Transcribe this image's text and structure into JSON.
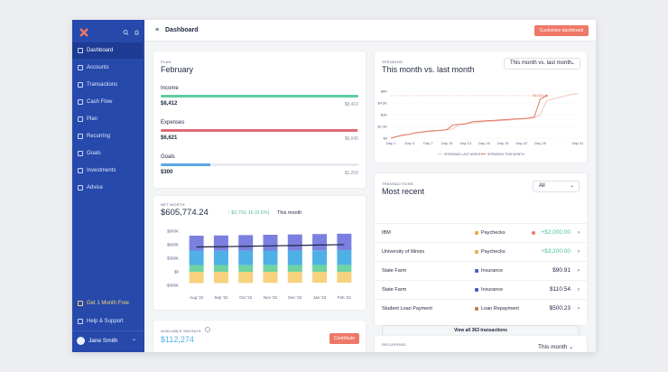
{
  "sidebar": {
    "nav": [
      "Dashboard",
      "Accounts",
      "Transactions",
      "Cash Flow",
      "Plan",
      "Recurring",
      "Goals",
      "Investments",
      "Advice"
    ],
    "promo": "Get 1 Month Free",
    "help": "Help & Support",
    "user": "Jane Smith"
  },
  "header": {
    "title": "Dashboard",
    "button": "Customize dashboard"
  },
  "plan": {
    "label": "PLAN",
    "title": "February",
    "rows": [
      {
        "name": "Income",
        "actual": 8412,
        "actual_label": "$8,412",
        "target": 8410,
        "target_label": "$8,410",
        "color": "#5fcca0"
      },
      {
        "name": "Expenses",
        "actual": 6621,
        "actual_label": "$6,621",
        "target": 6645,
        "target_label": "$6,645",
        "color": "#e0697a"
      },
      {
        "name": "Goals",
        "actual": 300,
        "actual_label": "$300",
        "target": 1200,
        "target_label": "$1,200",
        "color": "#5aa6e6"
      }
    ]
  },
  "net_worth": {
    "label": "NET WORTH",
    "value": "$605,774.24",
    "change": "↑ $2,791.16 (0.5%)",
    "period": "This month",
    "chart_data": {
      "type": "bar",
      "stacked": true,
      "categories": [
        "Aug '22",
        "Sep '22",
        "Oct '22",
        "Nov '22",
        "Dec '22",
        "Jan '22",
        "Feb '22"
      ],
      "series": [
        {
          "color": "#f6d27e",
          "values": [
            -250000,
            -250000,
            -248000,
            -246000,
            -245000,
            -244000,
            -242000
          ]
        },
        {
          "color": "#6fd4a2",
          "values": [
            150000,
            150000,
            148000,
            152000,
            150000,
            151000,
            152000
          ]
        },
        {
          "color": "#4fb0e6",
          "values": [
            320000,
            315000,
            320000,
            318000,
            322000,
            325000,
            326000
          ]
        },
        {
          "color": "#7b80e0",
          "values": [
            330000,
            340000,
            345000,
            350000,
            355000,
            360000,
            365000
          ]
        }
      ],
      "line": {
        "color": "#1f2340",
        "values": [
          550000,
          555000,
          565000,
          574000,
          582000,
          592000,
          601000
        ]
      },
      "ylim": [
        -400000,
        1000000
      ],
      "yticks": [
        {
          "value": 900000,
          "label": "$900K"
        },
        {
          "value": 600000,
          "label": "$600K"
        },
        {
          "value": 300000,
          "label": "$300K"
        },
        {
          "value": 0,
          "label": "$0"
        },
        {
          "value": -300000,
          "label": "-$300K"
        }
      ]
    }
  },
  "savings": {
    "label": "AVAILABLE SAVINGS",
    "value": "$112,274",
    "button": "Contribute"
  },
  "spending": {
    "label": "SPENDING",
    "title": "This month vs. last month",
    "dropdown": "This month vs. last month",
    "chart_data": {
      "type": "line",
      "x": [
        1,
        2,
        3,
        4,
        5,
        6,
        7,
        8,
        9,
        10,
        11,
        12,
        13,
        14,
        15,
        16,
        17,
        18,
        19,
        20,
        21,
        22,
        23,
        24,
        25,
        26,
        27,
        28,
        29,
        30,
        31
      ],
      "series": [
        {
          "name": "SPENDING LAST MONTH",
          "color": "#f2c4bc",
          "values": [
            0,
            250,
            350,
            500,
            650,
            750,
            850,
            900,
            1000,
            1050,
            1200,
            1800,
            1850,
            1900,
            2000,
            2100,
            2150,
            2200,
            2250,
            2300,
            2400,
            2450,
            2500,
            2600,
            3000,
            4800,
            5000,
            5200,
            5400,
            5600,
            5700
          ]
        },
        {
          "name": "SPENDING THIS MONTH",
          "color": "#e07a62",
          "values": [
            0,
            200,
            400,
            500,
            700,
            800,
            900,
            950,
            1000,
            1100,
            1700,
            1750,
            1800,
            2100,
            2150,
            2200,
            2250,
            2300,
            2350,
            2400,
            2450,
            2500,
            2550,
            2700,
            5000,
            5423,
            null,
            null,
            null,
            null,
            null
          ]
        }
      ],
      "annotation": "$5,423",
      "xlim": [
        1,
        31
      ],
      "xticks": [
        {
          "value": 1,
          "label": "Day 1"
        },
        {
          "value": 4,
          "label": "Day 4"
        },
        {
          "value": 7,
          "label": "Day 7"
        },
        {
          "value": 10,
          "label": "Day 10"
        },
        {
          "value": 13,
          "label": "Day 13"
        },
        {
          "value": 16,
          "label": "Day 16"
        },
        {
          "value": 19,
          "label": "Day 19"
        },
        {
          "value": 22,
          "label": "Day 22"
        },
        {
          "value": 25,
          "label": "Day 25"
        },
        {
          "value": 31,
          "label": "Day 31"
        }
      ],
      "ylim": [
        0,
        6000
      ],
      "yticks": [
        {
          "value": 6000,
          "label": "$6K"
        },
        {
          "value": 4500,
          "label": "$4.5K"
        },
        {
          "value": 3000,
          "label": "$3K"
        },
        {
          "value": 1500,
          "label": "$1.5K"
        },
        {
          "value": 0,
          "label": "$0"
        }
      ]
    }
  },
  "transactions": {
    "label": "TRANSACTIONS",
    "title": "Most recent",
    "dropdown": "All",
    "rows": [
      {
        "merchant": "IBM",
        "category": "Paychecks",
        "amount": "+$2,000.00"
      },
      {
        "merchant": "University of Illinois",
        "category": "Paychecks",
        "amount": "+$3,200.00"
      },
      {
        "merchant": "State Farm",
        "category": "Insurance",
        "amount": "$90.91"
      },
      {
        "merchant": "State Farm",
        "category": "Insurance",
        "amount": "$110.54"
      },
      {
        "merchant": "Student Loan Payment",
        "category": "Loan Repayment",
        "amount": "$500.23"
      }
    ],
    "button": "View all 363 transactions"
  },
  "recurring": {
    "label": "RECURRING",
    "dropdown": "This month"
  }
}
